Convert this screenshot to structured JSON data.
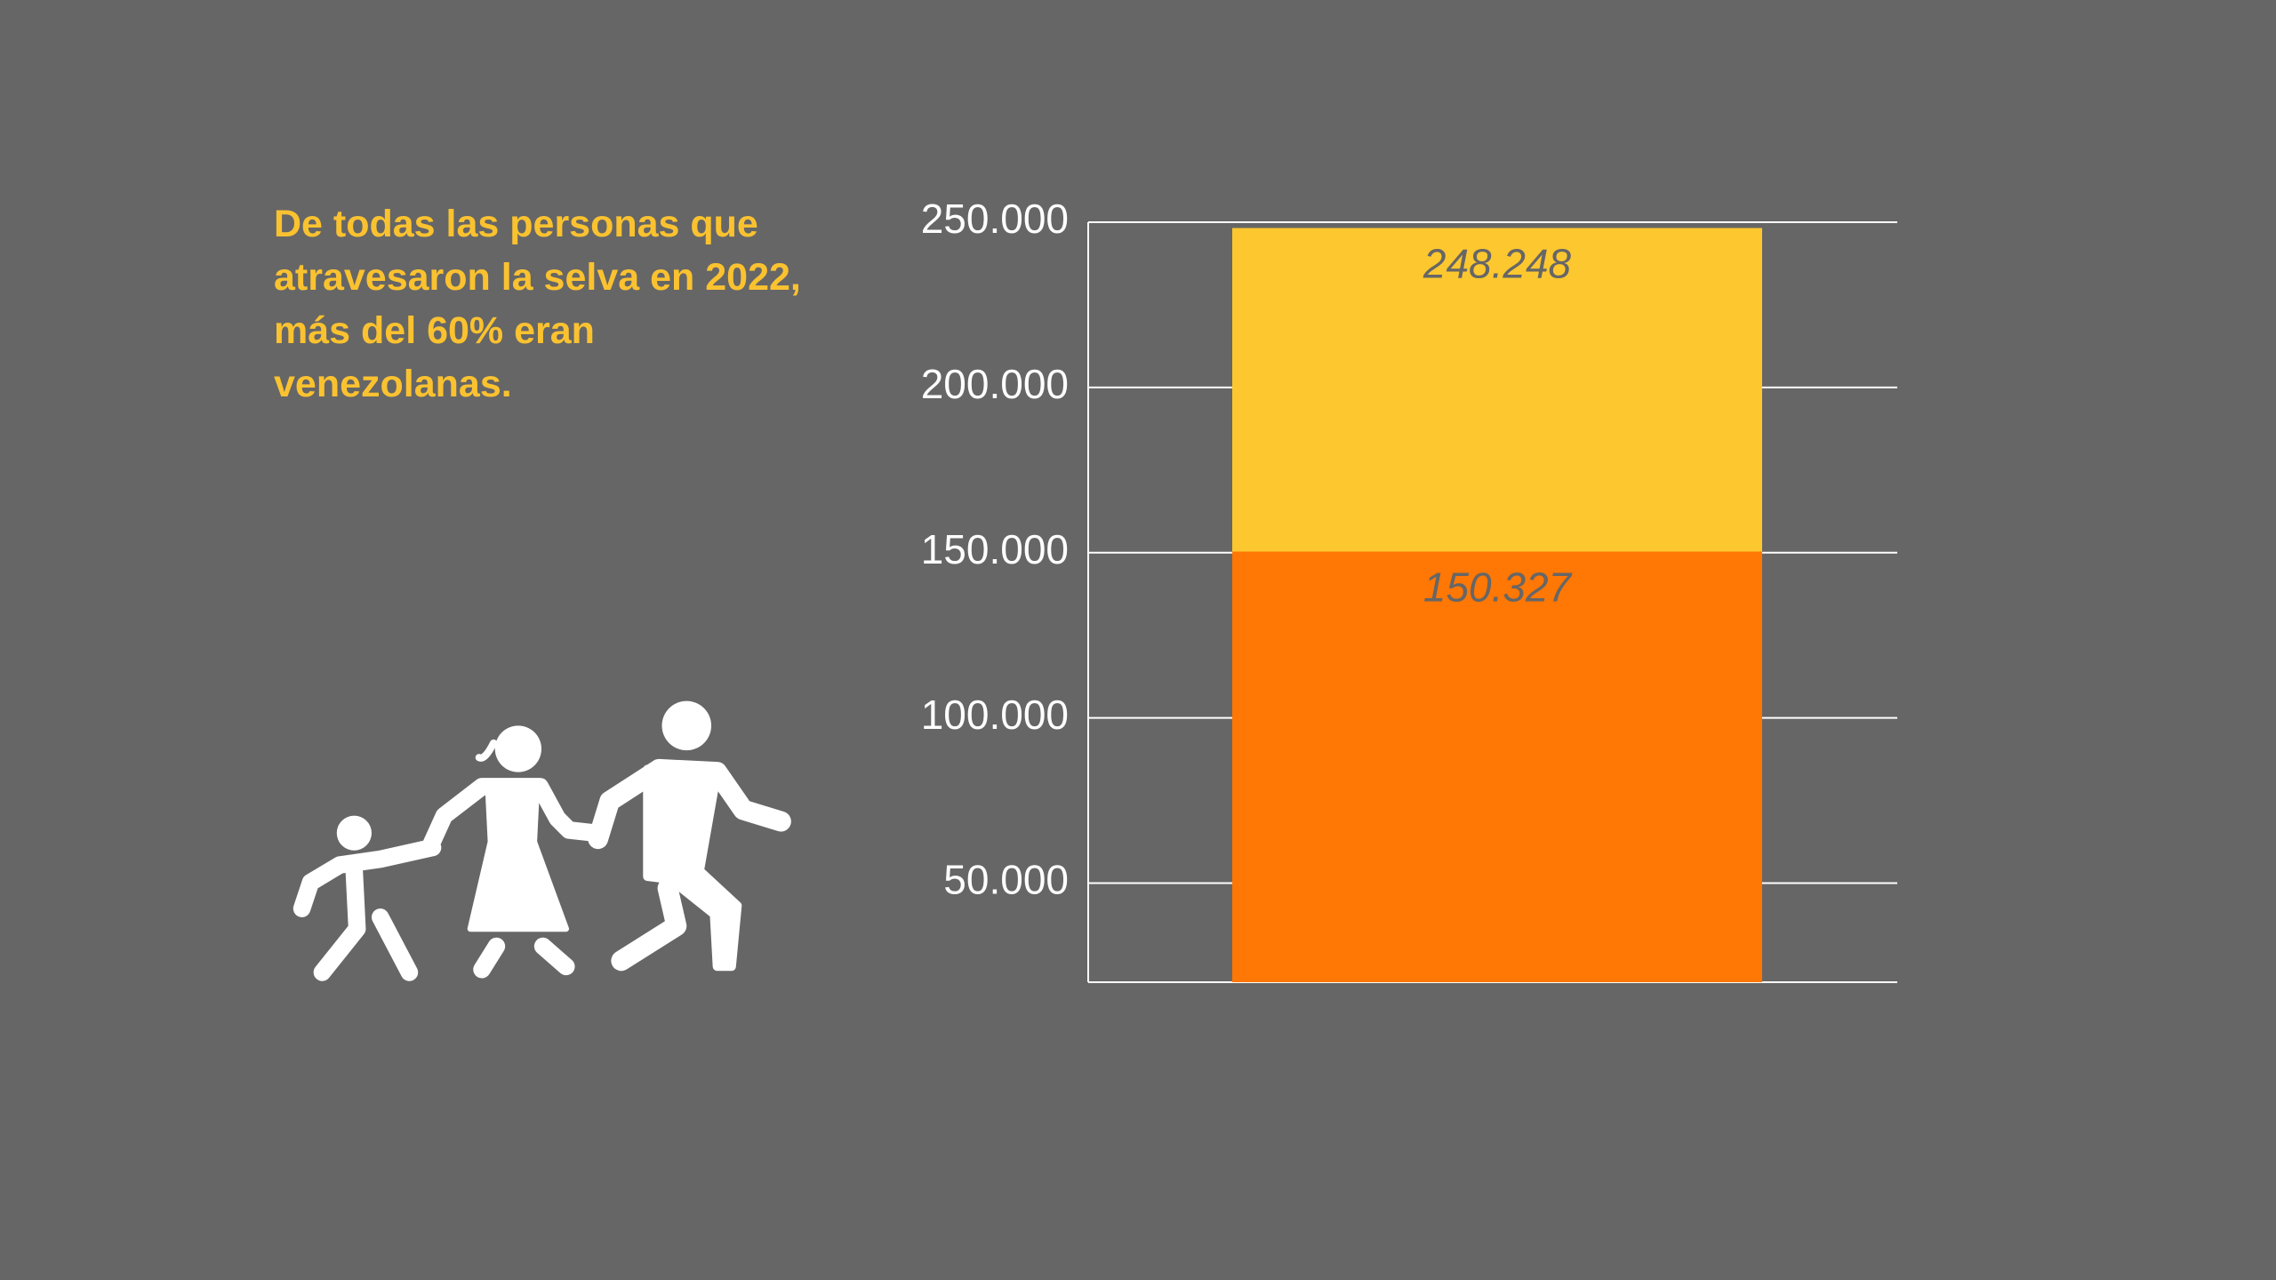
{
  "chart_data": {
    "type": "overlap-bar",
    "subtitle": "De todas las personas que atravesaron la selva en 2022, más del 60% eran venezolanas.",
    "categories": [
      null
    ],
    "series": [
      {
        "color": "#fdc72f",
        "values": [
          248248
        ],
        "value_labels": [
          "248.248"
        ]
      },
      {
        "color": "#ff7704",
        "values": [
          150327
        ],
        "value_labels": [
          "150.327"
        ]
      }
    ],
    "ylim": [
      20000,
      250000
    ],
    "yticks": [
      {
        "value": 50000,
        "label": "50.000"
      },
      {
        "value": 100000,
        "label": "100.000"
      },
      {
        "value": 150000,
        "label": "150.000"
      },
      {
        "value": 200000,
        "label": "200.000"
      },
      {
        "value": 250000,
        "label": "250.000"
      }
    ],
    "grid": true
  }
}
